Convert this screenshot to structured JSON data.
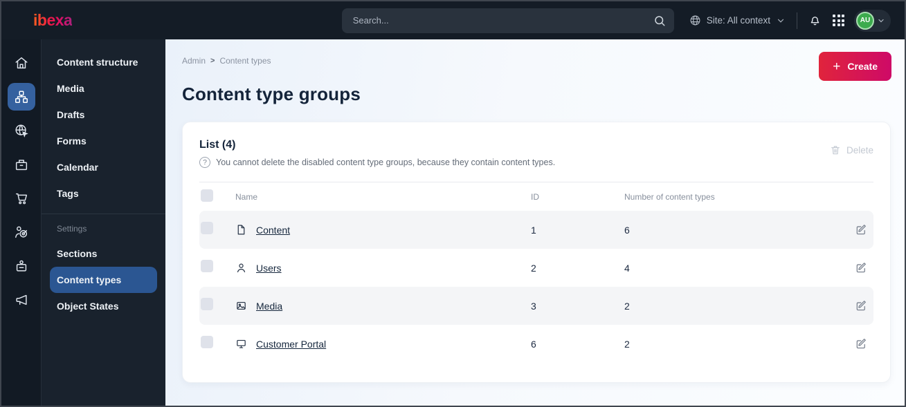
{
  "topbar": {
    "logo": "ibexa",
    "search_placeholder": "Search...",
    "site_context": "Site: All context",
    "avatar_initials": "AU"
  },
  "icons": {
    "plus": "+",
    "breadcrumb_separator": ">",
    "rail_items": [
      "dashboard",
      "content",
      "site",
      "product-catalog",
      "commerce",
      "personalization",
      "admin",
      "marketing"
    ],
    "rail_active": "content",
    "top_icons": [
      "globe",
      "chevron-down",
      "bell",
      "app-grid"
    ],
    "row_icons": [
      "file",
      "user",
      "image",
      "monitor"
    ],
    "other": [
      "search-magnifier",
      "help-circle",
      "trash",
      "edit-pencil-square",
      "checkbox"
    ]
  },
  "sidebar": {
    "items": [
      "Content structure",
      "Media",
      "Drafts",
      "Forms",
      "Calendar",
      "Tags"
    ],
    "section_label": "Settings",
    "settings_items": [
      "Sections",
      "Content types",
      "Object States"
    ],
    "active_item": "Content types"
  },
  "main": {
    "breadcrumb": [
      "Admin",
      "Content types"
    ],
    "create_label": "Create",
    "title": "Content type groups",
    "list": {
      "title": "List (4)",
      "info": "You cannot delete the disabled content type groups, because they contain content types.",
      "delete_label": "Delete",
      "table": {
        "headers": {
          "name": "Name",
          "id": "ID",
          "count": "Number of content types"
        },
        "rows": [
          {
            "name": "Content",
            "id": "1",
            "count": "6",
            "icon": "file-icon"
          },
          {
            "name": "Users",
            "id": "2",
            "count": "4",
            "icon": "user-icon"
          },
          {
            "name": "Media",
            "id": "3",
            "count": "2",
            "icon": "image-icon"
          },
          {
            "name": "Customer Portal",
            "id": "6",
            "count": "2",
            "icon": "monitor-icon"
          }
        ]
      }
    }
  },
  "colors": {
    "topbar_bg": "#141c26",
    "sidebar_bg": "#19222d",
    "active_blue": "#2b5692",
    "accent_gradient_start": "#e0243c",
    "accent_gradient_end": "#ce0a67",
    "avatar_green": "#3cab4d",
    "zebra_row": "#f4f5f7",
    "page_bg": "#eef4fb"
  }
}
